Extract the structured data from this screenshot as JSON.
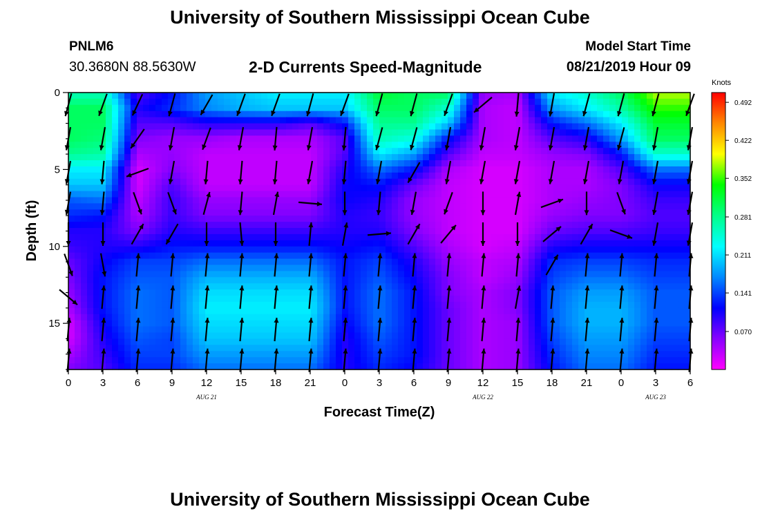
{
  "header": {
    "title": "University of Southern Mississippi Ocean Cube",
    "station": "PNLM6",
    "coords": "30.3680N 88.5630W",
    "plot_title": "2-D Currents Speed-Magnitude",
    "model_start_label": "Model Start Time",
    "model_start_value": "08/21/2019 Hour 09"
  },
  "footer": {
    "title": "University of Southern Mississippi Ocean Cube"
  },
  "chart_data": {
    "type": "heatmap",
    "xlabel": "Forecast Time(Z)",
    "ylabel": "Depth (ft)",
    "x_tick_labels": [
      "0",
      "3",
      "6",
      "9",
      "12",
      "15",
      "18",
      "21",
      "0",
      "3",
      "6",
      "9",
      "12",
      "15",
      "18",
      "21",
      "0",
      "3",
      "6"
    ],
    "x_range_hours": [
      0,
      54
    ],
    "day_labels": [
      {
        "label": "AUG 21",
        "hour": 12
      },
      {
        "label": "AUG 22",
        "hour": 36
      },
      {
        "label": "AUG 23",
        "hour": 51
      }
    ],
    "y_tick_labels": [
      "0",
      "5",
      "10",
      "15"
    ],
    "y_range_ft": [
      0,
      18
    ],
    "colorbar": {
      "units": "Knots",
      "range": [
        0,
        0.51
      ],
      "tick_labels": [
        "0.492",
        "0.422",
        "0.352",
        "0.281",
        "0.211",
        "0.141",
        "0.070"
      ],
      "tick_values": [
        0.492,
        0.422,
        0.352,
        0.281,
        0.211,
        0.141,
        0.07
      ],
      "colors": [
        "#ff00ff",
        "#8800ff",
        "#0000ff",
        "#0088ff",
        "#00ffff",
        "#00ff88",
        "#00ff00",
        "#ffff00",
        "#ff8800",
        "#ff0000"
      ]
    },
    "time_hours": [
      0,
      3,
      6,
      9,
      12,
      15,
      18,
      21,
      24,
      27,
      30,
      33,
      36,
      39,
      42,
      45,
      48,
      51,
      54
    ],
    "depths_ft": [
      0,
      1,
      2,
      3,
      4,
      5,
      6,
      7,
      8,
      9,
      10,
      11,
      12,
      13,
      14,
      15,
      16,
      17,
      18
    ],
    "speed_knots": [
      [
        0.26,
        0.26,
        0.08,
        0.12,
        0.18,
        0.2,
        0.22,
        0.22,
        0.22,
        0.32,
        0.3,
        0.3,
        0.05,
        0.04,
        0.22,
        0.25,
        0.3,
        0.38,
        0.38
      ],
      [
        0.3,
        0.3,
        0.1,
        0.13,
        0.17,
        0.19,
        0.2,
        0.2,
        0.2,
        0.3,
        0.3,
        0.25,
        0.04,
        0.03,
        0.18,
        0.22,
        0.27,
        0.35,
        0.35
      ],
      [
        0.3,
        0.3,
        0.08,
        0.08,
        0.1,
        0.1,
        0.1,
        0.08,
        0.12,
        0.28,
        0.28,
        0.2,
        0.04,
        0.03,
        0.12,
        0.16,
        0.22,
        0.32,
        0.32
      ],
      [
        0.3,
        0.29,
        0.06,
        0.05,
        0.05,
        0.04,
        0.04,
        0.04,
        0.08,
        0.26,
        0.24,
        0.12,
        0.04,
        0.03,
        0.08,
        0.1,
        0.18,
        0.3,
        0.3
      ],
      [
        0.28,
        0.27,
        0.04,
        0.05,
        0.03,
        0.03,
        0.03,
        0.03,
        0.08,
        0.22,
        0.18,
        0.08,
        0.03,
        0.03,
        0.05,
        0.06,
        0.12,
        0.25,
        0.25
      ],
      [
        0.22,
        0.22,
        0.02,
        0.06,
        0.03,
        0.03,
        0.03,
        0.03,
        0.1,
        0.16,
        0.12,
        0.04,
        0.02,
        0.02,
        0.04,
        0.04,
        0.08,
        0.16,
        0.16
      ],
      [
        0.2,
        0.2,
        0.02,
        0.08,
        0.03,
        0.03,
        0.03,
        0.03,
        0.11,
        0.12,
        0.07,
        0.03,
        0.02,
        0.02,
        0.04,
        0.04,
        0.06,
        0.11,
        0.11
      ],
      [
        0.15,
        0.16,
        0.03,
        0.09,
        0.05,
        0.05,
        0.05,
        0.05,
        0.11,
        0.1,
        0.05,
        0.03,
        0.02,
        0.02,
        0.04,
        0.05,
        0.06,
        0.09,
        0.09
      ],
      [
        0.13,
        0.12,
        0.04,
        0.09,
        0.06,
        0.06,
        0.06,
        0.06,
        0.1,
        0.09,
        0.05,
        0.03,
        0.02,
        0.02,
        0.05,
        0.06,
        0.06,
        0.08,
        0.08
      ],
      [
        0.1,
        0.1,
        0.06,
        0.1,
        0.09,
        0.09,
        0.09,
        0.09,
        0.1,
        0.1,
        0.06,
        0.03,
        0.02,
        0.02,
        0.07,
        0.08,
        0.08,
        0.09,
        0.09
      ],
      [
        0.09,
        0.1,
        0.1,
        0.12,
        0.12,
        0.12,
        0.12,
        0.12,
        0.11,
        0.12,
        0.08,
        0.04,
        0.02,
        0.03,
        0.1,
        0.11,
        0.11,
        0.11,
        0.11
      ],
      [
        0.07,
        0.11,
        0.14,
        0.14,
        0.16,
        0.16,
        0.16,
        0.16,
        0.12,
        0.14,
        0.1,
        0.05,
        0.03,
        0.04,
        0.13,
        0.14,
        0.14,
        0.13,
        0.13
      ],
      [
        0.06,
        0.12,
        0.15,
        0.15,
        0.19,
        0.19,
        0.19,
        0.19,
        0.12,
        0.15,
        0.11,
        0.06,
        0.03,
        0.05,
        0.14,
        0.16,
        0.16,
        0.14,
        0.14
      ],
      [
        0.05,
        0.12,
        0.16,
        0.15,
        0.21,
        0.21,
        0.21,
        0.21,
        0.12,
        0.16,
        0.12,
        0.06,
        0.04,
        0.06,
        0.15,
        0.18,
        0.18,
        0.15,
        0.15
      ],
      [
        0.04,
        0.12,
        0.16,
        0.15,
        0.22,
        0.22,
        0.22,
        0.22,
        0.12,
        0.16,
        0.12,
        0.07,
        0.04,
        0.06,
        0.15,
        0.19,
        0.19,
        0.15,
        0.15
      ],
      [
        0.02,
        0.11,
        0.16,
        0.15,
        0.21,
        0.21,
        0.21,
        0.21,
        0.11,
        0.16,
        0.12,
        0.07,
        0.04,
        0.05,
        0.15,
        0.19,
        0.19,
        0.15,
        0.15
      ],
      [
        0.02,
        0.1,
        0.15,
        0.14,
        0.2,
        0.2,
        0.2,
        0.2,
        0.1,
        0.15,
        0.12,
        0.07,
        0.04,
        0.05,
        0.14,
        0.18,
        0.18,
        0.14,
        0.14
      ],
      [
        0.04,
        0.09,
        0.14,
        0.14,
        0.18,
        0.18,
        0.18,
        0.18,
        0.1,
        0.14,
        0.12,
        0.07,
        0.04,
        0.05,
        0.13,
        0.17,
        0.17,
        0.13,
        0.13
      ],
      [
        0.06,
        0.08,
        0.13,
        0.13,
        0.16,
        0.16,
        0.16,
        0.16,
        0.1,
        0.13,
        0.11,
        0.07,
        0.04,
        0.05,
        0.12,
        0.16,
        0.16,
        0.12,
        0.12
      ]
    ],
    "vector_depths_ft": [
      0.8,
      3.0,
      5.2,
      7.2,
      9.2,
      11.2,
      13.3,
      15.4,
      17.4
    ],
    "vector_directions_deg": [
      [
        195,
        200,
        205,
        195,
        210,
        200,
        200,
        195,
        200,
        195,
        195,
        200,
        230,
        185,
        190,
        195,
        195,
        195,
        200
      ],
      [
        190,
        190,
        215,
        190,
        200,
        190,
        185,
        190,
        185,
        195,
        195,
        190,
        190,
        190,
        190,
        190,
        195,
        190,
        190
      ],
      [
        190,
        185,
        250,
        190,
        185,
        185,
        185,
        190,
        185,
        190,
        210,
        190,
        190,
        190,
        190,
        190,
        190,
        190,
        190
      ],
      [
        190,
        185,
        160,
        160,
        15,
        185,
        10,
        95,
        180,
        185,
        190,
        200,
        180,
        10,
        70,
        180,
        160,
        190,
        190
      ],
      [
        180,
        180,
        30,
        210,
        180,
        175,
        180,
        5,
        10,
        85,
        30,
        40,
        180,
        180,
        50,
        30,
        110,
        190,
        190
      ],
      [
        160,
        170,
        5,
        5,
        5,
        5,
        5,
        5,
        5,
        5,
        5,
        5,
        5,
        5,
        30,
        5,
        5,
        5,
        5
      ],
      [
        130,
        5,
        5,
        5,
        5,
        5,
        5,
        5,
        5,
        5,
        5,
        5,
        5,
        10,
        5,
        5,
        5,
        5,
        5
      ],
      [
        5,
        5,
        5,
        5,
        5,
        5,
        5,
        5,
        5,
        5,
        5,
        5,
        5,
        5,
        5,
        5,
        5,
        5,
        5
      ],
      [
        5,
        5,
        5,
        5,
        5,
        5,
        5,
        5,
        5,
        5,
        5,
        5,
        5,
        5,
        5,
        5,
        5,
        5,
        5
      ]
    ]
  }
}
